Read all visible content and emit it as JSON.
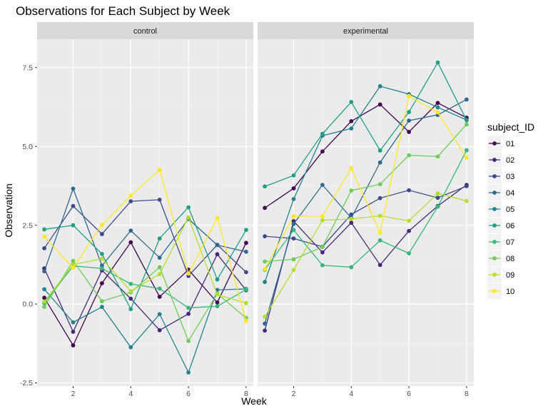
{
  "chart_data": {
    "type": "line",
    "title": "Observations for Each Subject by Week",
    "xlabel": "Week",
    "ylabel": "Observation",
    "xlim": [
      0.75,
      8.25
    ],
    "ylim": [
      -2.6,
      8.4
    ],
    "x_ticks": [
      2,
      4,
      6,
      8
    ],
    "y_ticks": [
      -2.5,
      0.0,
      2.5,
      5.0,
      7.5
    ],
    "y_tick_labels": [
      "-2.5",
      "0.0",
      "2.5",
      "5.0",
      "7.5"
    ],
    "grid": true,
    "legend_position": "right",
    "legend_title": "subject_ID",
    "x": [
      1,
      2,
      3,
      4,
      5,
      6,
      7,
      8
    ],
    "series_names": [
      "01",
      "02",
      "03",
      "04",
      "05",
      "06",
      "07",
      "08",
      "09",
      "10"
    ],
    "series_colors": [
      "#440154",
      "#482878",
      "#3E4A89",
      "#31688E",
      "#26828E",
      "#1F9E89",
      "#35B779",
      "#6DCD59",
      "#B4DE2C",
      "#FDE725"
    ],
    "panels": [
      {
        "name": "control",
        "series": [
          {
            "name": "01",
            "values": [
              0.2,
              -1.31,
              0.66,
              1.96,
              0.23,
              1.09,
              0.05,
              1.94
            ]
          },
          {
            "name": "02",
            "values": [
              1.13,
              -0.88,
              1.07,
              0.17,
              -0.83,
              -0.31,
              1.58,
              0.44
            ]
          },
          {
            "name": "03",
            "values": [
              1.77,
              3.11,
              2.22,
              3.26,
              3.31,
              0.89,
              1.88,
              1.01
            ]
          },
          {
            "name": "04",
            "values": [
              1.04,
              3.66,
              1.22,
              2.33,
              1.47,
              2.7,
              1.87,
              1.66
            ]
          },
          {
            "name": "05",
            "values": [
              0.47,
              -0.58,
              -0.09,
              -1.37,
              -0.32,
              -2.17,
              0.45,
              0.48
            ]
          },
          {
            "name": "06",
            "values": [
              2.37,
              2.5,
              1.59,
              -0.16,
              2.08,
              3.07,
              0.78,
              2.35
            ]
          },
          {
            "name": "07",
            "values": [
              0.03,
              1.21,
              1.13,
              0.64,
              0.49,
              -0.12,
              -0.07,
              0.46
            ]
          },
          {
            "name": "08",
            "values": [
              -0.09,
              1.37,
              0.09,
              0.37,
              1.17,
              -1.17,
              0.33,
              -0.44
            ]
          },
          {
            "name": "09",
            "values": [
              0.08,
              1.25,
              1.44,
              0.41,
              0.95,
              2.75,
              0.3,
              0.03
            ]
          },
          {
            "name": "10",
            "values": [
              2.14,
              1.15,
              2.52,
              3.44,
              4.26,
              0.97,
              2.73,
              -0.53
            ]
          }
        ]
      },
      {
        "name": "experimental",
        "series": [
          {
            "name": "01",
            "values": [
              3.05,
              3.67,
              4.84,
              5.8,
              6.33,
              5.46,
              6.38,
              5.91
            ]
          },
          {
            "name": "02",
            "values": [
              -0.84,
              2.63,
              1.64,
              2.58,
              1.24,
              2.32,
              3.11,
              3.78
            ]
          },
          {
            "name": "03",
            "values": [
              2.15,
              2.08,
              1.82,
              2.84,
              3.36,
              3.61,
              3.37,
              3.74
            ]
          },
          {
            "name": "04",
            "values": [
              -0.62,
              2.54,
              3.78,
              2.73,
              4.49,
              5.82,
              6.0,
              6.49
            ]
          },
          {
            "name": "05",
            "values": [
              0.7,
              3.33,
              5.34,
              5.57,
              6.91,
              6.66,
              6.24,
              5.84
            ]
          },
          {
            "name": "06",
            "values": [
              3.73,
              4.08,
              5.4,
              6.41,
              4.87,
              6.09,
              7.66,
              5.83
            ]
          },
          {
            "name": "07",
            "values": [
              1.09,
              2.35,
              1.23,
              1.17,
              2.02,
              1.61,
              3.09,
              4.88
            ]
          },
          {
            "name": "08",
            "values": [
              1.35,
              1.42,
              1.81,
              3.6,
              3.8,
              4.72,
              4.68,
              5.7
            ]
          },
          {
            "name": "09",
            "values": [
              -0.4,
              1.08,
              2.66,
              2.7,
              2.8,
              2.64,
              3.51,
              3.27
            ]
          },
          {
            "name": "10",
            "values": [
              1.11,
              2.79,
              2.79,
              4.31,
              2.26,
              6.6,
              6.08,
              4.64
            ]
          }
        ]
      }
    ]
  }
}
